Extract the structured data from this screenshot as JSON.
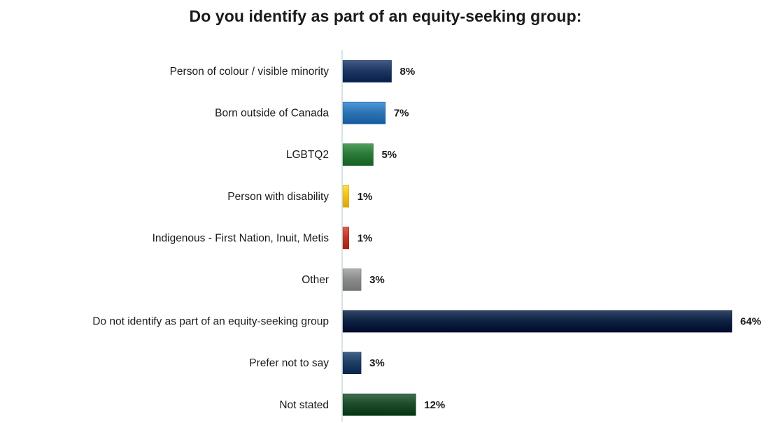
{
  "chart_data": {
    "type": "bar",
    "orientation": "horizontal",
    "title": "Do you identify as part of an equity-seeking group:",
    "xlabel": "",
    "ylabel": "",
    "xlim": [
      0,
      64
    ],
    "grid": false,
    "legend": "none",
    "categories": [
      "Person of colour / visible minority",
      "Born outside of Canada",
      "LGBTQ2",
      "Person with disability",
      "Indigenous - First Nation, Inuit, Metis",
      "Other",
      "Do not identify as part of an equity-seeking group",
      "Prefer not to say",
      "Not stated"
    ],
    "values": [
      8,
      7,
      5,
      1,
      1,
      3,
      64,
      3,
      12
    ],
    "value_labels": [
      "8%",
      "7%",
      "5%",
      "1%",
      "1%",
      "3%",
      "64%",
      "3%",
      "12%"
    ],
    "colors": [
      "#1f3864",
      "#2e75b6",
      "#2d7a3a",
      "#f4c020",
      "#c0392b",
      "#8c8c8c",
      "#0f2344",
      "#1f3f66",
      "#1e4d2b"
    ]
  }
}
